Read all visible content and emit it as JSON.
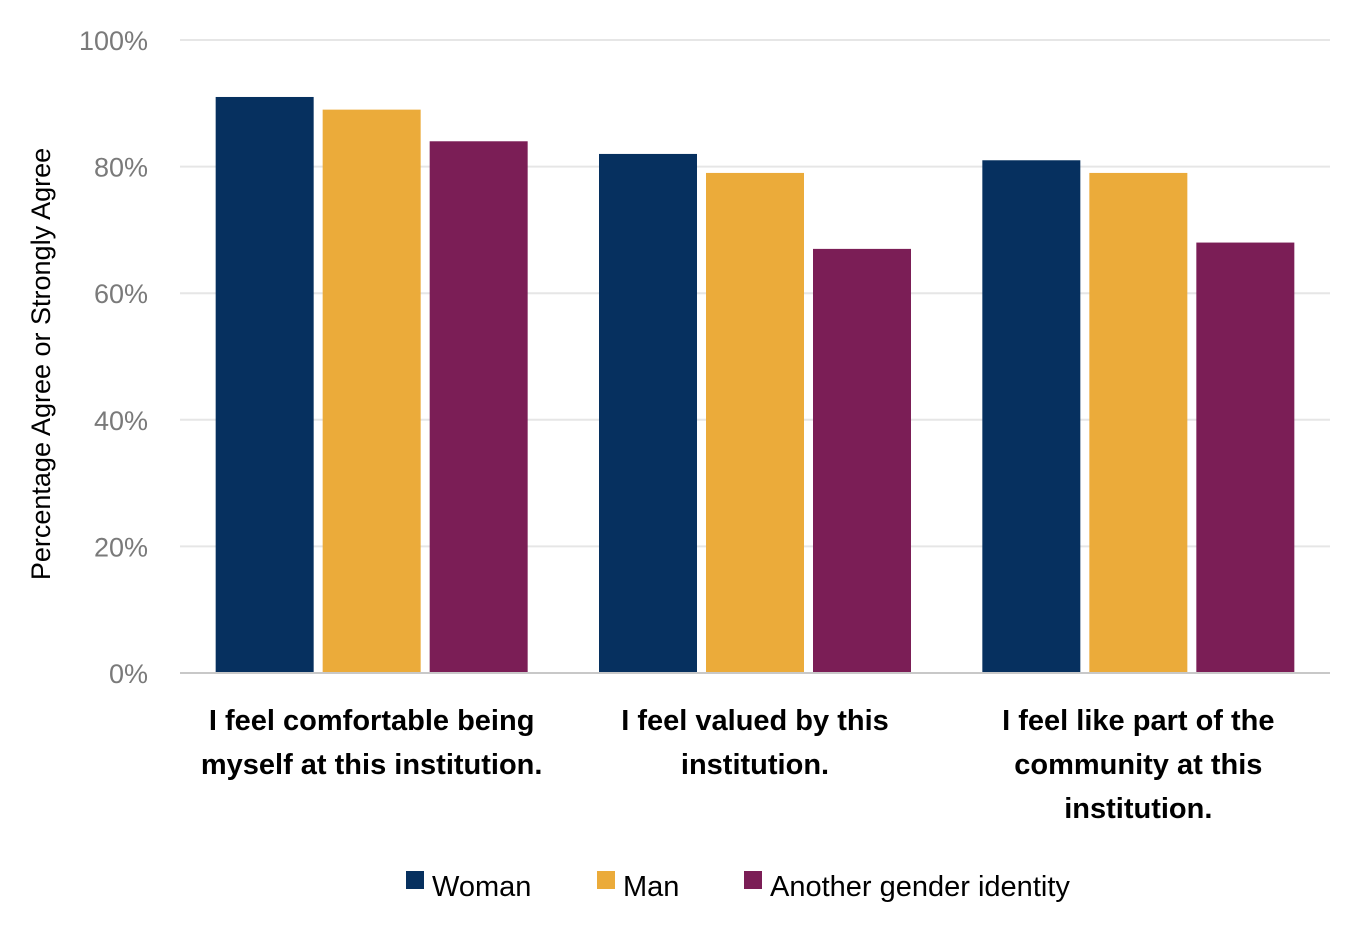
{
  "chart_data": {
    "type": "bar",
    "categories": [
      [
        "I feel comfortable being",
        "myself at this institution."
      ],
      [
        "I feel valued by this",
        "institution."
      ],
      [
        "I feel like part of the",
        "community at this",
        "institution."
      ]
    ],
    "series": [
      {
        "name": "Woman",
        "color": "#06305f",
        "values": [
          91,
          82,
          81
        ]
      },
      {
        "name": "Man",
        "color": "#ebab3a",
        "values": [
          89,
          79,
          79
        ]
      },
      {
        "name": "Another gender identity",
        "color": "#7b1e56",
        "values": [
          84,
          67,
          68
        ]
      }
    ],
    "ylabel": "Percentage Agree or Strongly Agree",
    "xlabel": "",
    "ylim": [
      0,
      100
    ],
    "yticks": [
      "0%",
      "20%",
      "40%",
      "60%",
      "80%",
      "100%"
    ],
    "ytick_values": [
      0,
      20,
      40,
      60,
      80,
      100
    ],
    "grid": true,
    "legend_position": "bottom"
  }
}
